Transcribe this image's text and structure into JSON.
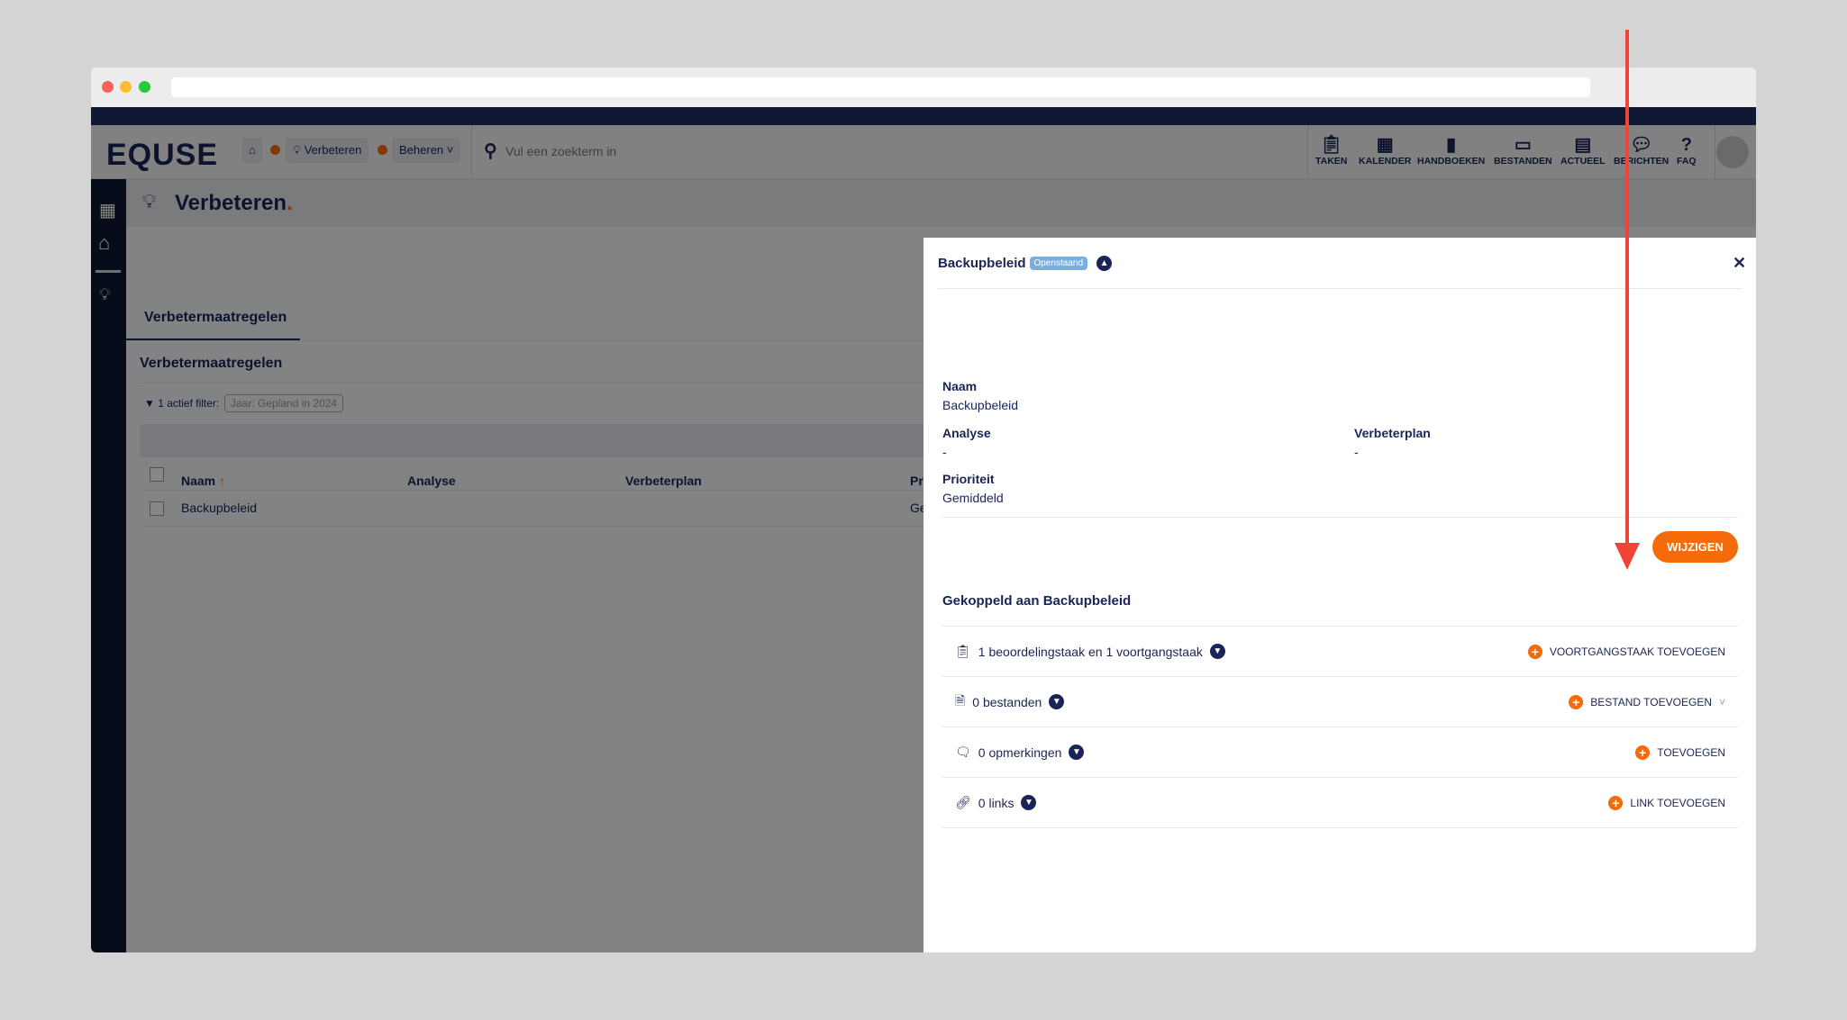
{
  "browser": {
    "url": ""
  },
  "header": {
    "logo": "EQUSE",
    "breadcrumb": {
      "home_icon": "home-icon",
      "current": "Verbeteren",
      "menu": "Beheren"
    },
    "search_placeholder": "Vul een zoekterm in",
    "nav": [
      {
        "label": "TAKEN",
        "icon": "clipboard-icon"
      },
      {
        "label": "KALENDER",
        "icon": "calendar-icon"
      },
      {
        "label": "HANDBOEKEN",
        "icon": "book-icon"
      },
      {
        "label": "BESTANDEN",
        "icon": "archive-icon"
      },
      {
        "label": "ACTUEEL",
        "icon": "newspaper-icon"
      },
      {
        "label": "BERICHTEN",
        "icon": "chat-icon"
      },
      {
        "label": "FAQ",
        "icon": "question-icon"
      }
    ]
  },
  "page": {
    "title": "Verbeteren",
    "title_dot": ".",
    "tab": "Verbetermaatregelen",
    "section_title": "Verbetermaatregelen",
    "filter_label": "1 actief filter:",
    "filter_chip": "Jaar: Gepland in 2024",
    "table": {
      "columns": [
        "Naam",
        "Analyse",
        "Verbeterplan",
        "Pr"
      ],
      "rows": [
        {
          "naam": "Backupbeleid",
          "analyse": "",
          "verbeterplan": "",
          "prioriteit": "Ge"
        }
      ]
    }
  },
  "modal": {
    "title": "Backupbeleid",
    "status": "Openstaand",
    "fields": {
      "naam_label": "Naam",
      "naam": "Backupbeleid",
      "analyse_label": "Analyse",
      "analyse": "-",
      "verbeterplan_label": "Verbeterplan",
      "verbeterplan": "-",
      "prioriteit_label": "Prioriteit",
      "prioriteit": "Gemiddeld"
    },
    "edit_button": "WIJZIGEN",
    "linked_title": "Gekoppeld aan Backupbeleid",
    "linked": [
      {
        "icon": "clipboard-icon",
        "text": "1 beoordelingstaak en 1 voortgangstaak",
        "action": "VOORTGANGSTAAK TOEVOEGEN"
      },
      {
        "icon": "file-icon",
        "text": "0 bestanden",
        "action": "BESTAND TOEVOEGEN"
      },
      {
        "icon": "comments-icon",
        "text": "0 opmerkingen",
        "action": "TOEVOEGEN"
      },
      {
        "icon": "link-icon",
        "text": "0 links",
        "action": "LINK TOEVOEGEN"
      }
    ]
  },
  "colors": {
    "navy": "#0f1733",
    "accent": "#f56b0a",
    "badge": "#7aaee0",
    "annotation_arrow": "#f04438"
  }
}
